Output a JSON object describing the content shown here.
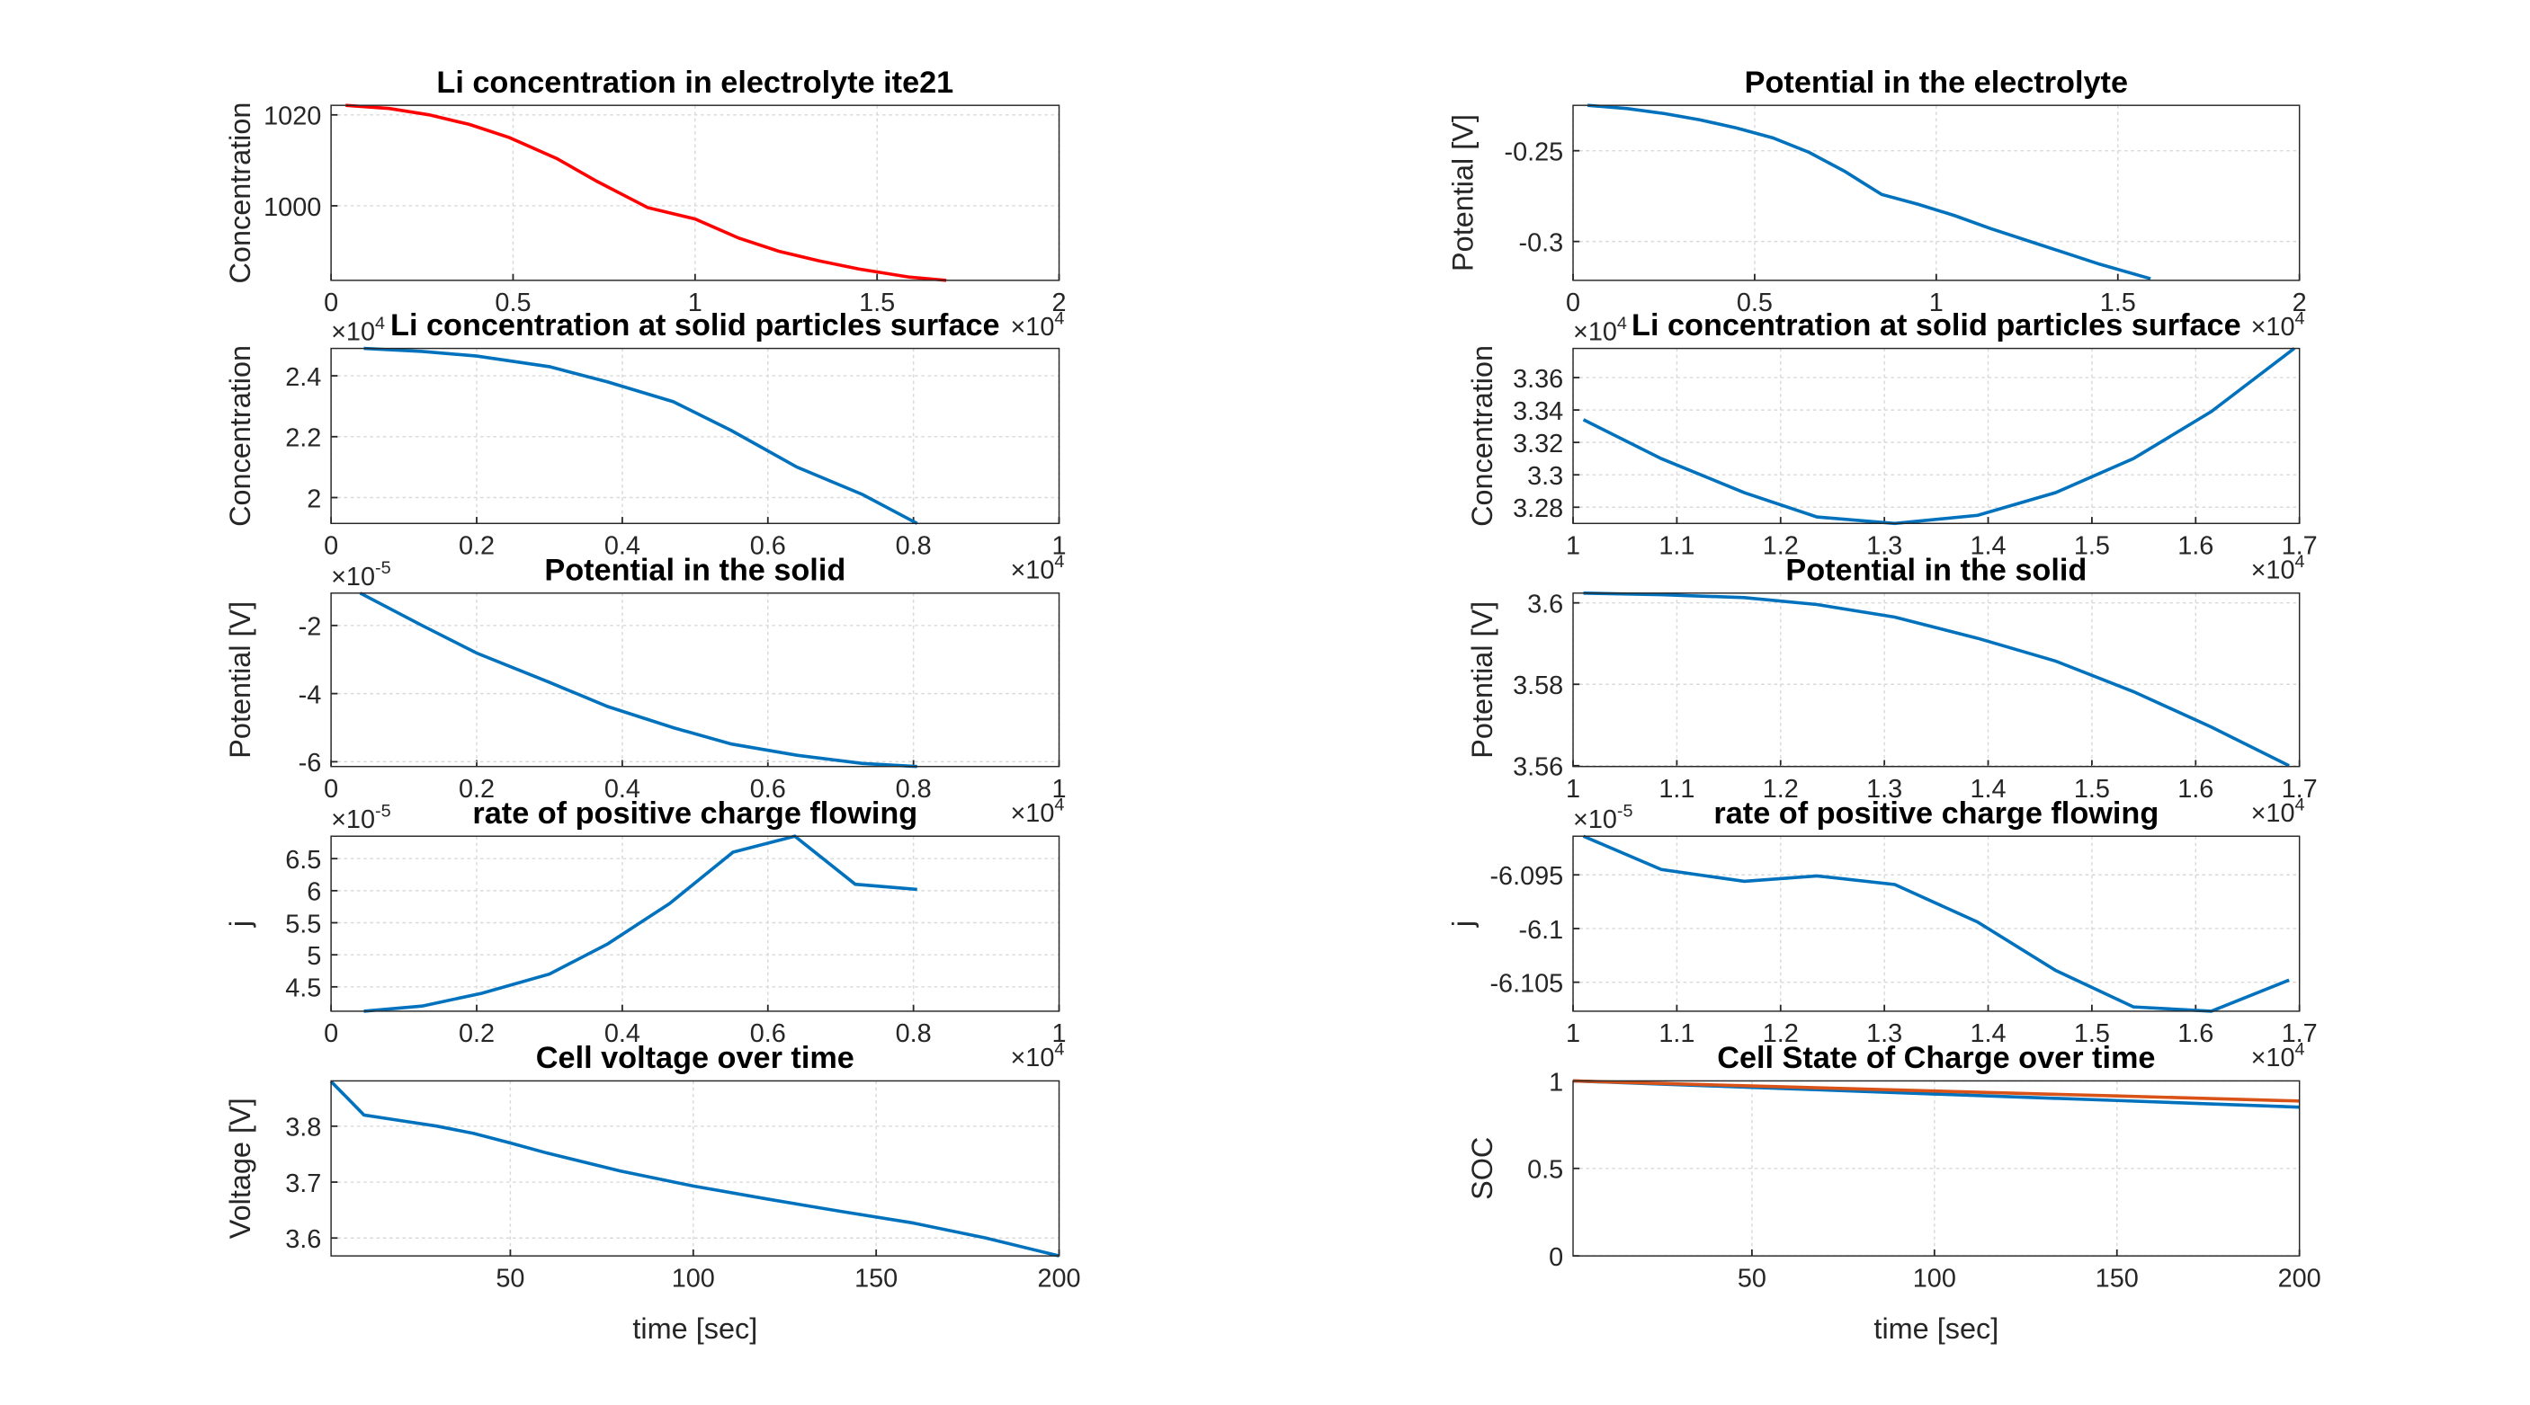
{
  "chart_data": [
    {
      "type": "line",
      "title": "Li concentration in electrolyte ite21",
      "ylabel": "Concentration",
      "x": [
        0.04,
        0.16,
        0.27,
        0.38,
        0.49,
        0.62,
        0.73,
        0.8,
        0.87,
        1.0,
        1.12,
        1.23,
        1.34,
        1.45,
        1.59,
        1.69
      ],
      "series": [
        {
          "color": "#ff0000",
          "values": [
            1022.1,
            1021.4,
            1020,
            1017.9,
            1015,
            1010.4,
            1005.4,
            1002.5,
            999.6,
            997.1,
            992.9,
            990,
            987.9,
            986.1,
            984.3,
            983.6
          ]
        }
      ],
      "xlim": [
        0,
        2
      ],
      "xticks": [
        0,
        0.5,
        1,
        1.5,
        2
      ],
      "ylim": [
        983.6,
        1022.1
      ],
      "yticks": [
        1000,
        1020
      ],
      "x_multiplier": {
        "base": "×10",
        "power": "4"
      },
      "grid": true
    },
    {
      "type": "line",
      "title": "Potential in the electrolyte",
      "ylabel": "Potential [V]",
      "x": [
        0.04,
        0.15,
        0.25,
        0.35,
        0.45,
        0.55,
        0.65,
        0.75,
        0.8,
        0.85,
        0.95,
        1.05,
        1.15,
        1.3,
        1.45,
        1.59
      ],
      "series": [
        {
          "color": "#0072bd",
          "values": [
            -0.225,
            -0.2268,
            -0.2295,
            -0.233,
            -0.2375,
            -0.2429,
            -0.2509,
            -0.2616,
            -0.2679,
            -0.2741,
            -0.2795,
            -0.2857,
            -0.2929,
            -0.3027,
            -0.3125,
            -0.3205
          ]
        }
      ],
      "xlim": [
        0,
        2
      ],
      "xticks": [
        0,
        0.5,
        1,
        1.5,
        2
      ],
      "ylim": [
        -0.3214,
        -0.225
      ],
      "yticks": [
        -0.3,
        -0.25
      ],
      "x_multiplier": {
        "base": "×10",
        "power": "4"
      },
      "grid": true
    },
    {
      "type": "line",
      "title": "Li concentration at solid particles surface",
      "ylabel": "Concentration",
      "x": [
        0.045,
        0.125,
        0.2,
        0.3,
        0.38,
        0.47,
        0.55,
        0.64,
        0.73,
        0.805
      ],
      "series": [
        {
          "color": "#0072bd",
          "values": [
            2.49,
            2.48,
            2.465,
            2.43,
            2.38,
            2.315,
            2.22,
            2.1,
            2.01,
            1.915
          ]
        }
      ],
      "xlim": [
        0,
        1
      ],
      "xticks": [
        0,
        0.2,
        0.4,
        0.6,
        0.8,
        1
      ],
      "ylim": [
        1.915,
        2.49
      ],
      "yticks": [
        2,
        2.2,
        2.4
      ],
      "y_multiplier": {
        "base": "×10",
        "power": "4"
      },
      "x_multiplier": {
        "base": "×10",
        "power": "4"
      },
      "grid": true
    },
    {
      "type": "line",
      "title": "Li concentration at solid particles surface",
      "ylabel": "Concentration",
      "x": [
        1.01,
        1.085,
        1.165,
        1.235,
        1.31,
        1.39,
        1.465,
        1.54,
        1.615,
        1.695
      ],
      "series": [
        {
          "color": "#0072bd",
          "values": [
            3.334,
            3.31,
            3.289,
            3.274,
            3.27,
            3.275,
            3.289,
            3.31,
            3.339,
            3.378
          ]
        }
      ],
      "xlim": [
        1,
        1.7
      ],
      "xticks": [
        1,
        1.1,
        1.2,
        1.3,
        1.4,
        1.5,
        1.6,
        1.7
      ],
      "ylim": [
        3.27,
        3.378
      ],
      "yticks": [
        3.28,
        3.3,
        3.32,
        3.34,
        3.36
      ],
      "y_multiplier": {
        "base": "×10",
        "power": "4"
      },
      "x_multiplier": {
        "base": "×10",
        "power": "4"
      },
      "grid": true
    },
    {
      "type": "line",
      "title": "Potential in the solid",
      "ylabel": "Potential [V]",
      "x": [
        0.04,
        0.125,
        0.2,
        0.3,
        0.38,
        0.47,
        0.55,
        0.64,
        0.73,
        0.805
      ],
      "series": [
        {
          "color": "#0072bd",
          "values": [
            -1.05,
            -2,
            -2.81,
            -3.67,
            -4.38,
            -5,
            -5.48,
            -5.81,
            -6.05,
            -6.14
          ]
        }
      ],
      "xlim": [
        0,
        1
      ],
      "xticks": [
        0,
        0.2,
        0.4,
        0.6,
        0.8,
        1
      ],
      "ylim": [
        -6.14,
        -1.05
      ],
      "yticks": [
        -6,
        -4,
        -2
      ],
      "y_multiplier": {
        "base": "×10",
        "power": "-5"
      },
      "x_multiplier": {
        "base": "×10",
        "power": "4"
      },
      "grid": true
    },
    {
      "type": "line",
      "title": "Potential in the solid",
      "ylabel": "Potential [V]",
      "x": [
        1.01,
        1.085,
        1.165,
        1.235,
        1.31,
        1.39,
        1.465,
        1.54,
        1.615,
        1.69
      ],
      "series": [
        {
          "color": "#0072bd",
          "values": [
            3.6024,
            3.602,
            3.6013,
            3.5996,
            3.5965,
            3.5913,
            3.5857,
            3.5782,
            3.5695,
            3.56
          ]
        }
      ],
      "xlim": [
        1,
        1.7
      ],
      "xticks": [
        1,
        1.1,
        1.2,
        1.3,
        1.4,
        1.5,
        1.6,
        1.7
      ],
      "ylim": [
        3.5598,
        3.6024
      ],
      "yticks": [
        3.56,
        3.58,
        3.6
      ],
      "x_multiplier": {
        "base": "×10",
        "power": "4"
      },
      "grid": true
    },
    {
      "type": "line",
      "title": "rate of positive charge flowing",
      "ylabel": "j",
      "x": [
        0.045,
        0.125,
        0.207,
        0.3,
        0.38,
        0.465,
        0.552,
        0.637,
        0.72,
        0.805
      ],
      "series": [
        {
          "color": "#0072bd",
          "values": [
            4.12,
            4.2,
            4.4,
            4.7,
            5.17,
            5.8,
            6.6,
            6.85,
            6.1,
            6.02
          ]
        }
      ],
      "xlim": [
        0,
        1
      ],
      "xticks": [
        0,
        0.2,
        0.4,
        0.6,
        0.8,
        1
      ],
      "ylim": [
        4.12,
        6.85
      ],
      "yticks": [
        4.5,
        5,
        5.5,
        6,
        6.5
      ],
      "y_multiplier": {
        "base": "×10",
        "power": "-5"
      },
      "x_multiplier": {
        "base": "×10",
        "power": "4"
      },
      "grid": true
    },
    {
      "type": "line",
      "title": "rate of positive charge flowing",
      "ylabel": "j",
      "x": [
        1.01,
        1.085,
        1.165,
        1.235,
        1.31,
        1.39,
        1.465,
        1.54,
        1.615,
        1.69
      ],
      "series": [
        {
          "color": "#0072bd",
          "values": [
            -6.0914,
            -6.0945,
            -6.0956,
            -6.0951,
            -6.0959,
            -6.0994,
            -6.1039,
            -6.1073,
            -6.1077,
            -6.1048
          ]
        }
      ],
      "xlim": [
        1,
        1.7
      ],
      "xticks": [
        1,
        1.1,
        1.2,
        1.3,
        1.4,
        1.5,
        1.6,
        1.7
      ],
      "ylim": [
        -6.1077,
        -6.0914
      ],
      "yticks": [
        -6.105,
        -6.1,
        -6.095
      ],
      "y_multiplier": {
        "base": "×10",
        "power": "-5"
      },
      "x_multiplier": {
        "base": "×10",
        "power": "4"
      },
      "grid": true
    },
    {
      "type": "line",
      "title": "Cell voltage over time",
      "ylabel": "Voltage [V]",
      "xlabel": "time [sec]",
      "x": [
        1,
        10,
        20,
        30,
        40,
        50,
        60,
        80,
        100,
        120,
        140,
        160,
        180,
        200
      ],
      "series": [
        {
          "color": "#0072bd",
          "values": [
            3.88,
            3.82,
            3.81,
            3.8,
            3.787,
            3.77,
            3.752,
            3.72,
            3.693,
            3.67,
            3.648,
            3.627,
            3.6,
            3.568
          ]
        }
      ],
      "xlim": [
        1,
        200
      ],
      "xticks": [
        50,
        100,
        150,
        200
      ],
      "ylim": [
        3.568,
        3.881
      ],
      "yticks": [
        3.6,
        3.7,
        3.8
      ],
      "grid": true
    },
    {
      "type": "line",
      "title": "Cell State of Charge over time",
      "ylabel": "SOC",
      "xlabel": "time [sec]",
      "x": [
        1,
        50,
        100,
        150,
        200
      ],
      "series": [
        {
          "color": "#0072bd",
          "values": [
            1,
            0.963,
            0.925,
            0.888,
            0.85
          ]
        },
        {
          "color": "#d95319",
          "values": [
            1,
            0.971,
            0.942,
            0.914,
            0.885
          ]
        }
      ],
      "xlim": [
        1,
        200
      ],
      "xticks": [
        50,
        100,
        150,
        200
      ],
      "ylim": [
        0,
        1
      ],
      "yticks": [
        0,
        0.5,
        1
      ],
      "grid": true
    }
  ]
}
